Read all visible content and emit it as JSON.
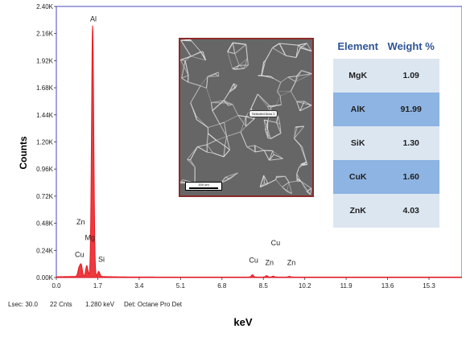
{
  "chart_data": {
    "type": "line",
    "xlabel": "keV",
    "ylabel": "Counts",
    "xlim": [
      0.0,
      17.0
    ],
    "ylim": [
      0,
      2400
    ],
    "x_ticks": [
      "0.0",
      "1.7",
      "3.4",
      "5.1",
      "6.8",
      "8.5",
      "10.2",
      "11.9",
      "13.6",
      "15.3"
    ],
    "y_ticks": [
      "0.00K",
      "0.24K",
      "0.48K",
      "0.72K",
      "0.96K",
      "1.20K",
      "1.44K",
      "1.68K",
      "1.92K",
      "2.16K",
      "2.40K"
    ],
    "peaks": [
      {
        "energy": 0.93,
        "counts": 70
      },
      {
        "energy": 1.02,
        "counts": 100
      },
      {
        "energy": 1.25,
        "counts": 95
      },
      {
        "energy": 1.49,
        "counts": 2220
      },
      {
        "energy": 1.74,
        "counts": 45
      },
      {
        "energy": 8.05,
        "counts": 20
      },
      {
        "energy": 8.63,
        "counts": 12
      },
      {
        "energy": 8.9,
        "counts": 8
      },
      {
        "energy": 9.57,
        "counts": 6
      }
    ],
    "peak_labels": [
      {
        "text": "Al",
        "energy": 1.52,
        "counts": 2270
      },
      {
        "text": "Zn",
        "energy": 1.0,
        "counts": 470
      },
      {
        "text": "Mg",
        "energy": 1.38,
        "counts": 330
      },
      {
        "text": "Cu",
        "energy": 0.95,
        "counts": 180
      },
      {
        "text": "Si",
        "energy": 1.85,
        "counts": 140
      },
      {
        "text": "Cu",
        "energy": 9.0,
        "counts": 285
      },
      {
        "text": "Cu",
        "energy": 8.1,
        "counts": 130
      },
      {
        "text": "Zn",
        "energy": 8.75,
        "counts": 110
      },
      {
        "text": "Zn",
        "energy": 9.65,
        "counts": 110
      }
    ]
  },
  "footer": {
    "lsec": "Lsec: 30.0",
    "cnts": "22 Cnts",
    "kev": "1.280 keV",
    "detector": "Det: Octane Pro Det"
  },
  "micrograph": {
    "label": "Selected Area 1",
    "scale": "200 um"
  },
  "table": {
    "headers": [
      "Element",
      "Weight %"
    ],
    "rows": [
      {
        "element": "MgK",
        "weight": "1.09"
      },
      {
        "element": "AlK",
        "weight": "91.99"
      },
      {
        "element": "SiK",
        "weight": "1.30"
      },
      {
        "element": "CuK",
        "weight": "1.60"
      },
      {
        "element": "ZnK",
        "weight": "4.03"
      }
    ]
  },
  "colors": {
    "spectrum": "#e8191f",
    "frame": "#6666cc",
    "table_light": "#dce6f1",
    "table_dark": "#8db4e2",
    "header_text": "#2f5496"
  }
}
